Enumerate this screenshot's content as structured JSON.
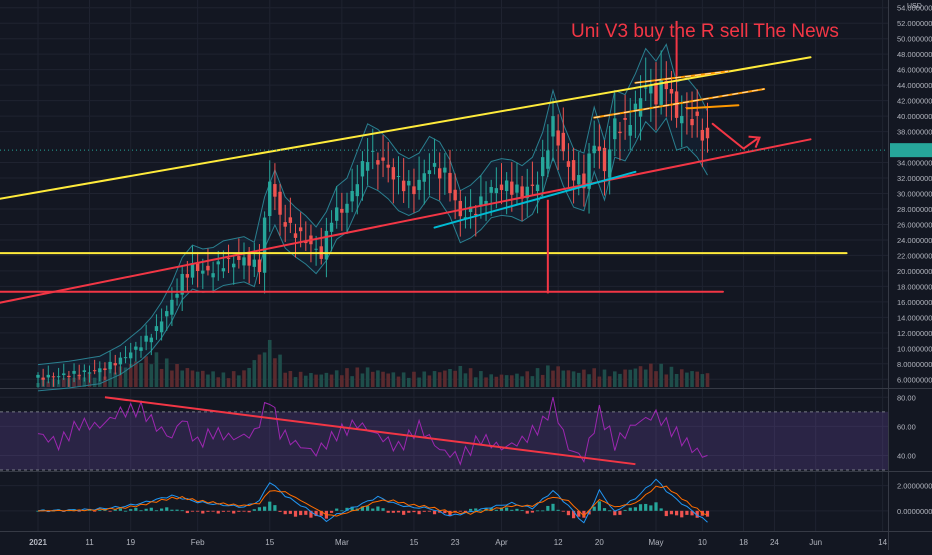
{
  "chart_data": [
    {
      "type": "line",
      "title": "",
      "annotation": "Uni V3 buy the R sell The News",
      "currency": "USD",
      "ylim": [
        5.0,
        55.0
      ],
      "y_ticks": [
        {
          "value": 54,
          "label": "54.00000000"
        },
        {
          "value": 52,
          "label": "52.00000000"
        },
        {
          "value": 50,
          "label": "50.00000000"
        },
        {
          "value": 48,
          "label": "48.00000000"
        },
        {
          "value": 46,
          "label": "46.00000000"
        },
        {
          "value": 44,
          "label": "44.00000000"
        },
        {
          "value": 42,
          "label": "42.00000000"
        },
        {
          "value": 40,
          "label": "40.00000000"
        },
        {
          "value": 38,
          "label": "38.00000000"
        },
        {
          "value": 34,
          "label": "34.00000000"
        },
        {
          "value": 32,
          "label": "32.00000000"
        },
        {
          "value": 30,
          "label": "30.00000000"
        },
        {
          "value": 28,
          "label": "28.00000000"
        },
        {
          "value": 26,
          "label": "26.00000000"
        },
        {
          "value": 24,
          "label": "24.00000000"
        },
        {
          "value": 22,
          "label": "22.00000000"
        },
        {
          "value": 20,
          "label": "20.00000000"
        },
        {
          "value": 18,
          "label": "18.00000000"
        },
        {
          "value": 16,
          "label": "16.00000000"
        },
        {
          "value": 14,
          "label": "14.00000000"
        },
        {
          "value": 12,
          "label": "12.00000000"
        },
        {
          "value": 10,
          "label": "10.00000000"
        },
        {
          "value": 8,
          "label": "8.00000000"
        },
        {
          "value": 6,
          "label": "6.00000000"
        }
      ],
      "price_marker_value": 35.6,
      "price_marker_color": "#26a69a",
      "x_ticks": [
        {
          "t": 0,
          "label": "2021"
        },
        {
          "t": 10,
          "label": "11"
        },
        {
          "t": 18,
          "label": "19"
        },
        {
          "t": 31,
          "label": "Feb"
        },
        {
          "t": 45,
          "label": "15"
        },
        {
          "t": 59,
          "label": "Mar"
        },
        {
          "t": 73,
          "label": "15"
        },
        {
          "t": 81,
          "label": "23"
        },
        {
          "t": 90,
          "label": "Apr"
        },
        {
          "t": 101,
          "label": "12"
        },
        {
          "t": 109,
          "label": "20"
        },
        {
          "t": 120,
          "label": "May"
        },
        {
          "t": 129,
          "label": "10"
        },
        {
          "t": 137,
          "label": "18"
        },
        {
          "t": 143,
          "label": "24"
        },
        {
          "t": 151,
          "label": "Jun"
        },
        {
          "t": 164,
          "label": "14"
        }
      ],
      "series": [
        {
          "color": "#e0e3eb",
          "points": [
            [
              0,
              6.2
            ],
            [
              6,
              6.6
            ],
            [
              12,
              7.2
            ],
            [
              16,
              8.5
            ],
            [
              20,
              10.5
            ],
            [
              23,
              12.5
            ],
            [
              26,
              16.0
            ],
            [
              28,
              19.0
            ],
            [
              30,
              20.5
            ],
            [
              33,
              19.8
            ],
            [
              36,
              21.0
            ],
            [
              40,
              21.5
            ],
            [
              43,
              20.5
            ],
            [
              45,
              32.0
            ],
            [
              47,
              27.0
            ],
            [
              49,
              25.5
            ],
            [
              52,
              24.0
            ],
            [
              55,
              22.0
            ],
            [
              57,
              27.0
            ],
            [
              60,
              28.5
            ],
            [
              64,
              35.0
            ],
            [
              67,
              34.0
            ],
            [
              70,
              31.5
            ],
            [
              73,
              30.5
            ],
            [
              76,
              33.5
            ],
            [
              79,
              32.5
            ],
            [
              82,
              27.0
            ],
            [
              85,
              28.0
            ],
            [
              88,
              30.5
            ],
            [
              91,
              31.0
            ],
            [
              94,
              30.0
            ],
            [
              97,
              31.5
            ],
            [
              100,
              39.0
            ],
            [
              102,
              35.0
            ],
            [
              104,
              32.0
            ],
            [
              106,
              31.5
            ],
            [
              108,
              37.0
            ],
            [
              110,
              33.0
            ],
            [
              112,
              39.0
            ],
            [
              114,
              38.5
            ],
            [
              116,
              41.0
            ],
            [
              118,
              44.0
            ],
            [
              120,
              42.5
            ],
            [
              122,
              44.5
            ],
            [
              124,
              40.0
            ],
            [
              126,
              40.5
            ],
            [
              128,
              39.0
            ],
            [
              130,
              36.5
            ]
          ]
        }
      ],
      "trend_lines": [
        {
          "name": "upper-channel",
          "color": "#ffeb3b",
          "from": [
            -17,
            28.2
          ],
          "to": [
            150,
            47.6
          ]
        },
        {
          "name": "lower-channel",
          "color": "#f23645",
          "from": [
            -17,
            14.6
          ],
          "to": [
            150,
            37.0
          ]
        },
        {
          "name": "horizontal-22",
          "color": "#ffeb3b",
          "from": [
            -12,
            22.3
          ],
          "to": [
            157,
            22.3
          ]
        },
        {
          "name": "horizontal-17",
          "color": "#f23645",
          "from": [
            -15,
            17.3
          ],
          "to": [
            133,
            17.3
          ]
        },
        {
          "name": "support-line",
          "color": "#00bcd4",
          "from": [
            77,
            25.6
          ],
          "to": [
            116,
            32.8
          ]
        },
        {
          "name": "wedge-upper",
          "color": "#ff9800",
          "from": [
            116,
            44.3
          ],
          "to": [
            134,
            45.8
          ]
        },
        {
          "name": "wedge-lower",
          "color": "#ff9800",
          "from": [
            108,
            39.8
          ],
          "to": [
            141,
            43.5
          ]
        },
        {
          "name": "short-bracket",
          "color": "#ff9800",
          "from": [
            126,
            41.0
          ],
          "to": [
            136,
            41.4
          ]
        },
        {
          "name": "projection",
          "color": "#f23645",
          "from": [
            131,
            39.0
          ],
          "to": [
            137,
            35.8
          ]
        }
      ],
      "volume": {
        "max": 11.0,
        "values": [
          [
            0,
            1.0
          ],
          [
            6,
            1.4
          ],
          [
            12,
            2.2
          ],
          [
            16,
            3.0
          ],
          [
            20,
            4.2
          ],
          [
            23,
            4.8
          ],
          [
            26,
            3.5
          ],
          [
            28,
            3.0
          ],
          [
            31,
            2.5
          ],
          [
            36,
            2.0
          ],
          [
            40,
            2.4
          ],
          [
            45,
            6.8
          ],
          [
            49,
            2.2
          ],
          [
            55,
            2.0
          ],
          [
            60,
            2.6
          ],
          [
            64,
            2.8
          ],
          [
            70,
            2.0
          ],
          [
            76,
            2.2
          ],
          [
            82,
            3.0
          ],
          [
            88,
            1.8
          ],
          [
            94,
            2.0
          ],
          [
            100,
            3.2
          ],
          [
            104,
            2.4
          ],
          [
            108,
            2.6
          ],
          [
            112,
            2.2
          ],
          [
            116,
            3.0
          ],
          [
            120,
            3.4
          ],
          [
            124,
            2.6
          ],
          [
            128,
            2.4
          ],
          [
            130,
            2.0
          ]
        ]
      }
    },
    {
      "type": "line",
      "indicator": "RSI",
      "ylim": [
        30,
        85
      ],
      "y_ticks": [
        {
          "value": 80,
          "label": "80.00"
        },
        {
          "value": 60,
          "label": "60.00"
        },
        {
          "value": 40,
          "label": "40.00"
        }
      ],
      "upper_band": 70,
      "lower_band": 30,
      "series": [
        {
          "color": "#9c27b0",
          "points": [
            [
              0,
              55
            ],
            [
              4,
              48
            ],
            [
              8,
              62
            ],
            [
              12,
              60
            ],
            [
              16,
              70
            ],
            [
              20,
              72
            ],
            [
              23,
              60
            ],
            [
              26,
              52
            ],
            [
              28,
              66
            ],
            [
              31,
              48
            ],
            [
              34,
              56
            ],
            [
              38,
              52
            ],
            [
              42,
              55
            ],
            [
              45,
              80
            ],
            [
              47,
              56
            ],
            [
              50,
              48
            ],
            [
              54,
              42
            ],
            [
              58,
              55
            ],
            [
              62,
              62
            ],
            [
              66,
              54
            ],
            [
              70,
              45
            ],
            [
              74,
              60
            ],
            [
              78,
              44
            ],
            [
              82,
              38
            ],
            [
              86,
              52
            ],
            [
              90,
              45
            ],
            [
              94,
              50
            ],
            [
              98,
              62
            ],
            [
              100,
              76
            ],
            [
              103,
              45
            ],
            [
              106,
              38
            ],
            [
              109,
              70
            ],
            [
              112,
              48
            ],
            [
              116,
              62
            ],
            [
              120,
              68
            ],
            [
              123,
              58
            ],
            [
              126,
              48
            ],
            [
              129,
              40
            ],
            [
              130,
              40
            ]
          ]
        }
      ],
      "trend_lines": [
        {
          "name": "rsi-divergence",
          "color": "#f23645",
          "from": [
            13,
            80
          ],
          "to": [
            116,
            34
          ]
        }
      ]
    },
    {
      "type": "line",
      "indicator": "MACD",
      "ylim": [
        -1.6,
        3.0
      ],
      "y_ticks": [
        {
          "value": 2,
          "label": "2.00000000"
        },
        {
          "value": 0,
          "label": "0.00000000"
        }
      ],
      "series": [
        {
          "color": "#2196f3",
          "points": [
            [
              0,
              0.0
            ],
            [
              6,
              0.05
            ],
            [
              10,
              0.1
            ],
            [
              16,
              0.3
            ],
            [
              20,
              0.6
            ],
            [
              23,
              0.9
            ],
            [
              26,
              1.2
            ],
            [
              28,
              1.0
            ],
            [
              31,
              0.7
            ],
            [
              35,
              0.5
            ],
            [
              40,
              0.3
            ],
            [
              43,
              0.8
            ],
            [
              45,
              2.3
            ],
            [
              48,
              1.2
            ],
            [
              52,
              0.2
            ],
            [
              56,
              -0.8
            ],
            [
              58,
              -0.3
            ],
            [
              62,
              0.4
            ],
            [
              66,
              1.1
            ],
            [
              69,
              0.6
            ],
            [
              72,
              0.3
            ],
            [
              76,
              0.2
            ],
            [
              80,
              -0.4
            ],
            [
              84,
              -0.1
            ],
            [
              88,
              0.3
            ],
            [
              92,
              0.6
            ],
            [
              96,
              0.2
            ],
            [
              100,
              1.6
            ],
            [
              103,
              0.4
            ],
            [
              106,
              -1.0
            ],
            [
              109,
              1.6
            ],
            [
              112,
              -0.1
            ],
            [
              116,
              1.0
            ],
            [
              120,
              2.5
            ],
            [
              122,
              1.6
            ],
            [
              124,
              0.9
            ],
            [
              127,
              0.0
            ],
            [
              130,
              -0.9
            ]
          ]
        },
        {
          "color": "#ff6d00",
          "points": [
            [
              0,
              0.0
            ],
            [
              6,
              0.02
            ],
            [
              10,
              0.05
            ],
            [
              16,
              0.2
            ],
            [
              20,
              0.45
            ],
            [
              23,
              0.75
            ],
            [
              26,
              1.0
            ],
            [
              28,
              1.05
            ],
            [
              31,
              0.8
            ],
            [
              35,
              0.6
            ],
            [
              40,
              0.4
            ],
            [
              43,
              0.6
            ],
            [
              45,
              1.6
            ],
            [
              48,
              1.5
            ],
            [
              52,
              0.6
            ],
            [
              56,
              -0.3
            ],
            [
              58,
              -0.4
            ],
            [
              62,
              0.1
            ],
            [
              66,
              0.8
            ],
            [
              69,
              0.8
            ],
            [
              72,
              0.5
            ],
            [
              76,
              0.3
            ],
            [
              80,
              -0.1
            ],
            [
              84,
              -0.2
            ],
            [
              88,
              0.1
            ],
            [
              92,
              0.4
            ],
            [
              96,
              0.4
            ],
            [
              100,
              1.1
            ],
            [
              103,
              0.8
            ],
            [
              106,
              -0.4
            ],
            [
              109,
              0.9
            ],
            [
              112,
              0.3
            ],
            [
              116,
              0.6
            ],
            [
              120,
              1.9
            ],
            [
              122,
              1.9
            ],
            [
              124,
              1.3
            ],
            [
              127,
              0.4
            ],
            [
              130,
              -0.4
            ]
          ]
        }
      ]
    }
  ]
}
